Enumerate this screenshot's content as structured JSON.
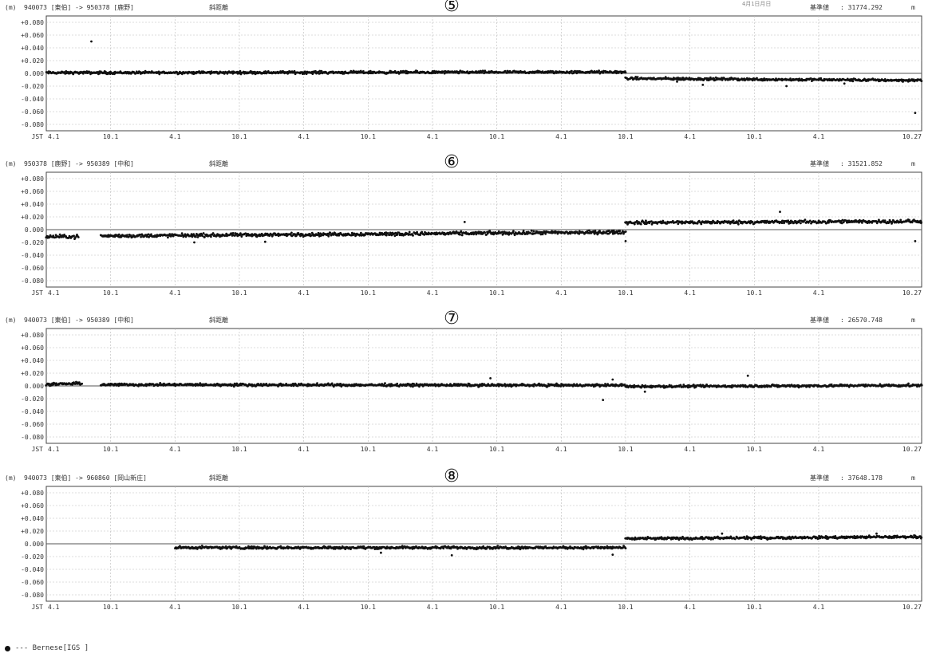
{
  "top_note": "4月1日月日",
  "legend": {
    "marker": "●",
    "label": "--- Bernese[IGS   ]"
  },
  "chart_data": [
    {
      "type": "scatter",
      "unit_label": "(m)",
      "baseline": "940073 [東伯] -> 950378 [鹿野]",
      "measure": "斜距離",
      "number_label": "⑤",
      "reference_label": "基準値",
      "reference_value": ": 31774.292",
      "reference_unit": "m",
      "yticks": [
        "+0.080",
        "+0.060",
        "+0.040",
        "+0.020",
        "0.000",
        "-0.020",
        "-0.040",
        "-0.060",
        "-0.080"
      ],
      "ylim": [
        -0.09,
        0.09
      ],
      "xlim": [
        0,
        13.6
      ],
      "xticks": [
        {
          "x": 0,
          "label": "4.1"
        },
        {
          "x": 1,
          "label": "10.1"
        },
        {
          "x": 2,
          "label": "4.1"
        },
        {
          "x": 3,
          "label": "10.1"
        },
        {
          "x": 4,
          "label": "4.1"
        },
        {
          "x": 5,
          "label": "10.1"
        },
        {
          "x": 6,
          "label": "4.1"
        },
        {
          "x": 7,
          "label": "10.1"
        },
        {
          "x": 8,
          "label": "4.1"
        },
        {
          "x": 9,
          "label": "10.1"
        },
        {
          "x": 10,
          "label": "4.1"
        },
        {
          "x": 11,
          "label": "10.1"
        },
        {
          "x": 12,
          "label": "4.1"
        },
        {
          "x": 13.6,
          "label": "10.27"
        }
      ],
      "x_axis_prefix": "JST",
      "segments": [
        {
          "x": [
            0.0,
            9.0
          ],
          "y": [
            0.001,
            0.002
          ],
          "spread": 0.003
        },
        {
          "x": [
            9.0,
            13.6
          ],
          "y": [
            -0.008,
            -0.011
          ],
          "spread": 0.003
        }
      ],
      "outliers": [
        [
          0.7,
          0.05
        ],
        [
          13.5,
          -0.062
        ],
        [
          10.2,
          -0.018
        ],
        [
          11.5,
          -0.02
        ],
        [
          12.4,
          -0.016
        ],
        [
          9.8,
          -0.013
        ]
      ]
    },
    {
      "type": "scatter",
      "unit_label": "(m)",
      "baseline": "950378 [鹿野] -> 950389 [中和]",
      "measure": "斜距離",
      "number_label": "⑥",
      "reference_label": "基準値",
      "reference_value": ": 31521.852",
      "reference_unit": "m",
      "yticks": [
        "+0.080",
        "+0.060",
        "+0.040",
        "+0.020",
        "0.000",
        "-0.020",
        "-0.040",
        "-0.060",
        "-0.080"
      ],
      "ylim": [
        -0.09,
        0.09
      ],
      "xlim": [
        0,
        13.6
      ],
      "xticks": [
        {
          "x": 0,
          "label": "4.1"
        },
        {
          "x": 1,
          "label": "10.1"
        },
        {
          "x": 2,
          "label": "4.1"
        },
        {
          "x": 3,
          "label": "10.1"
        },
        {
          "x": 4,
          "label": "4.1"
        },
        {
          "x": 5,
          "label": "10.1"
        },
        {
          "x": 6,
          "label": "4.1"
        },
        {
          "x": 7,
          "label": "10.1"
        },
        {
          "x": 8,
          "label": "4.1"
        },
        {
          "x": 9,
          "label": "10.1"
        },
        {
          "x": 10,
          "label": "4.1"
        },
        {
          "x": 11,
          "label": "10.1"
        },
        {
          "x": 12,
          "label": "4.1"
        },
        {
          "x": 13.6,
          "label": "10.27"
        }
      ],
      "x_axis_prefix": "JST",
      "segments": [
        {
          "x": [
            0.0,
            0.5
          ],
          "y": [
            -0.011,
            -0.011
          ],
          "spread": 0.004
        },
        {
          "x": [
            0.85,
            9.0
          ],
          "y": [
            -0.01,
            -0.004
          ],
          "spread": 0.004
        },
        {
          "x": [
            9.0,
            13.6
          ],
          "y": [
            0.011,
            0.013
          ],
          "spread": 0.004
        }
      ],
      "outliers": [
        [
          2.3,
          -0.02
        ],
        [
          3.4,
          -0.019
        ],
        [
          9.0,
          -0.018
        ],
        [
          11.4,
          0.028
        ],
        [
          13.5,
          -0.018
        ],
        [
          6.5,
          0.012
        ]
      ]
    },
    {
      "type": "scatter",
      "unit_label": "(m)",
      "baseline": "940073 [東伯] -> 950389 [中和]",
      "measure": "斜距離",
      "number_label": "⑦",
      "reference_label": "基準値",
      "reference_value": ": 26570.748",
      "reference_unit": "m",
      "yticks": [
        "+0.080",
        "+0.060",
        "+0.040",
        "+0.020",
        "0.000",
        "-0.020",
        "-0.040",
        "-0.060",
        "-0.080"
      ],
      "ylim": [
        -0.09,
        0.09
      ],
      "xlim": [
        0,
        13.6
      ],
      "xticks": [
        {
          "x": 0,
          "label": "4.1"
        },
        {
          "x": 1,
          "label": "10.1"
        },
        {
          "x": 2,
          "label": "4.1"
        },
        {
          "x": 3,
          "label": "10.1"
        },
        {
          "x": 4,
          "label": "4.1"
        },
        {
          "x": 5,
          "label": "10.1"
        },
        {
          "x": 6,
          "label": "4.1"
        },
        {
          "x": 7,
          "label": "10.1"
        },
        {
          "x": 8,
          "label": "4.1"
        },
        {
          "x": 9,
          "label": "10.1"
        },
        {
          "x": 10,
          "label": "4.1"
        },
        {
          "x": 11,
          "label": "10.1"
        },
        {
          "x": 12,
          "label": "4.1"
        },
        {
          "x": 13.6,
          "label": "10.27"
        }
      ],
      "x_axis_prefix": "JST",
      "segments": [
        {
          "x": [
            0.0,
            0.55
          ],
          "y": [
            0.002,
            0.004
          ],
          "spread": 0.003
        },
        {
          "x": [
            0.85,
            9.0
          ],
          "y": [
            0.002,
            0.001
          ],
          "spread": 0.003
        },
        {
          "x": [
            9.0,
            13.6
          ],
          "y": [
            -0.001,
            0.001
          ],
          "spread": 0.003
        }
      ],
      "outliers": [
        [
          8.65,
          -0.022
        ],
        [
          8.8,
          0.01
        ],
        [
          6.9,
          0.012
        ],
        [
          10.9,
          0.016
        ],
        [
          9.3,
          -0.009
        ]
      ]
    },
    {
      "type": "scatter",
      "unit_label": "(m)",
      "baseline": "940073 [東伯] -> 960860 [岡山新庄]",
      "measure": "斜距離",
      "number_label": "⑧",
      "reference_label": "基準値",
      "reference_value": ": 37648.178",
      "reference_unit": "m",
      "yticks": [
        "+0.080",
        "+0.060",
        "+0.040",
        "+0.020",
        "0.000",
        "-0.020",
        "-0.040",
        "-0.060",
        "-0.080"
      ],
      "ylim": [
        -0.09,
        0.09
      ],
      "xlim": [
        0,
        13.6
      ],
      "xticks": [
        {
          "x": 0,
          "label": "4.1"
        },
        {
          "x": 1,
          "label": "10.1"
        },
        {
          "x": 2,
          "label": "4.1"
        },
        {
          "x": 3,
          "label": "10.1"
        },
        {
          "x": 4,
          "label": "4.1"
        },
        {
          "x": 5,
          "label": "10.1"
        },
        {
          "x": 6,
          "label": "4.1"
        },
        {
          "x": 7,
          "label": "10.1"
        },
        {
          "x": 8,
          "label": "4.1"
        },
        {
          "x": 9,
          "label": "10.1"
        },
        {
          "x": 10,
          "label": "4.1"
        },
        {
          "x": 11,
          "label": "10.1"
        },
        {
          "x": 12,
          "label": "4.1"
        },
        {
          "x": 13.6,
          "label": "10.27"
        }
      ],
      "x_axis_prefix": "JST",
      "segments": [
        {
          "x": [
            2.0,
            9.0
          ],
          "y": [
            -0.006,
            -0.006
          ],
          "spread": 0.003
        },
        {
          "x": [
            9.0,
            13.6
          ],
          "y": [
            0.008,
            0.011
          ],
          "spread": 0.003
        }
      ],
      "outliers": [
        [
          6.3,
          -0.018
        ],
        [
          8.8,
          -0.017
        ],
        [
          5.2,
          -0.014
        ],
        [
          10.5,
          0.016
        ],
        [
          12.9,
          0.016
        ]
      ]
    }
  ]
}
